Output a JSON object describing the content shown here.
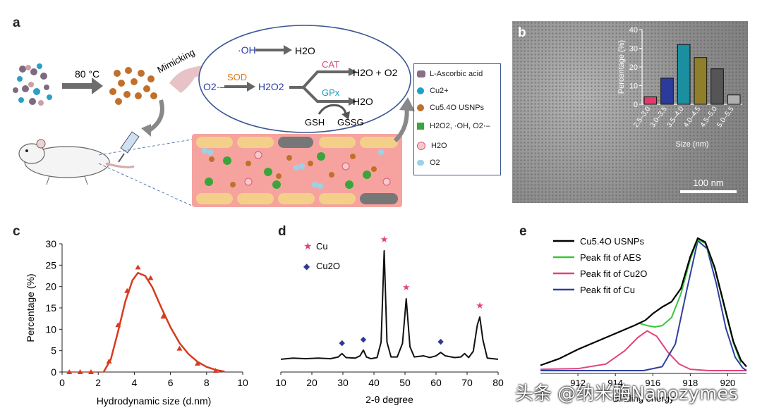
{
  "panels": {
    "a": {
      "letter": "a",
      "temp": "80 °C",
      "mimicking": "Mimicking",
      "oh": "·OH",
      "h2o_top": "H2O",
      "o2_radical": "O2·–",
      "sod": "SOD",
      "h2o2": "H2O2",
      "cat": "CAT",
      "h2o_o2": "H2O + O2",
      "gpx": "GPx",
      "h2o_mid": "H2O",
      "gsh": "GSH",
      "gssg": "GSSG",
      "legend": [
        {
          "label": "L-Ascorbic acid",
          "icon": "ascorbic-acid-icon"
        },
        {
          "label": "Cu2+",
          "icon": "copper-ion-icon"
        },
        {
          "label": "Cu5.4O USNPs",
          "icon": "nanoparticle-icon"
        },
        {
          "label": "H2O2, ·OH, O2·–",
          "icon": "ros-icon"
        },
        {
          "label": "H2O",
          "icon": "water-icon"
        },
        {
          "label": "O2",
          "icon": "oxygen-icon"
        }
      ]
    },
    "b": {
      "letter": "b",
      "scale_bar": "100 nm",
      "chart_data": {
        "type": "bar",
        "categories": [
          "2.5–3.0",
          "3.0–3.5",
          "3.5–4.0",
          "4.0–4.5",
          "4.5–5.0",
          "5.0–5.5"
        ],
        "values": [
          4,
          14,
          32,
          25,
          19,
          5
        ],
        "colors": [
          "#e23b6a",
          "#2a3b9c",
          "#1a8fa0",
          "#8f7f2a",
          "#555555",
          "#b0b0b0"
        ],
        "ylabel": "Percentage (%)",
        "xlabel": "Size (nm)",
        "ylim": [
          0,
          40
        ],
        "yticks": [
          0,
          10,
          20,
          30,
          40
        ]
      }
    },
    "c": {
      "letter": "c",
      "chart_data": {
        "type": "line",
        "xlabel": "Hydrodynamic size (d.nm)",
        "ylabel": "Percentage (%)",
        "xlim": [
          0,
          10
        ],
        "ylim": [
          0,
          30
        ],
        "xticks": [
          0,
          2,
          4,
          6,
          8,
          10
        ],
        "yticks": [
          0,
          5,
          10,
          15,
          20,
          25,
          30
        ],
        "points": [
          [
            0.4,
            0
          ],
          [
            1.0,
            0
          ],
          [
            1.6,
            0
          ],
          [
            2.6,
            2.5
          ],
          [
            3.1,
            11
          ],
          [
            3.6,
            19
          ],
          [
            4.2,
            24.5
          ],
          [
            4.9,
            22
          ],
          [
            5.6,
            13
          ],
          [
            6.5,
            5.5
          ],
          [
            7.5,
            2
          ],
          [
            8.5,
            0.3
          ]
        ],
        "curve": [
          [
            2.3,
            0
          ],
          [
            2.7,
            3
          ],
          [
            3.1,
            9.5
          ],
          [
            3.5,
            16.5
          ],
          [
            3.9,
            21.5
          ],
          [
            4.2,
            23.2
          ],
          [
            4.6,
            22.5
          ],
          [
            5.0,
            19.8
          ],
          [
            5.5,
            15
          ],
          [
            6.0,
            10.5
          ],
          [
            6.5,
            6.8
          ],
          [
            7.0,
            4.2
          ],
          [
            7.5,
            2.4
          ],
          [
            8.0,
            1.2
          ],
          [
            8.5,
            0.5
          ],
          [
            9.0,
            0.1
          ]
        ],
        "color": "#d93a1f"
      }
    },
    "d": {
      "letter": "d",
      "legend_cu": "Cu",
      "legend_cu2o": "Cu2O",
      "chart_data": {
        "type": "line",
        "xlabel": "2-θ degree",
        "xlim": [
          10,
          80
        ],
        "xticks": [
          10,
          20,
          30,
          40,
          50,
          60,
          70,
          80
        ],
        "ylim": [
          0,
          100
        ],
        "series": [
          {
            "name": "XRD",
            "values": [
              [
                10,
                5
              ],
              [
                14,
                6
              ],
              [
                18,
                5.5
              ],
              [
                22,
                6
              ],
              [
                26,
                5.5
              ],
              [
                28.5,
                7
              ],
              [
                29.7,
                10
              ],
              [
                31,
                6.5
              ],
              [
                34,
                6
              ],
              [
                35.5,
                8
              ],
              [
                36.6,
                13
              ],
              [
                37.6,
                7
              ],
              [
                39,
                5.5
              ],
              [
                41,
                6.5
              ],
              [
                42.3,
                20
              ],
              [
                43.3,
                100
              ],
              [
                44.2,
                20
              ],
              [
                45.5,
                7
              ],
              [
                47.5,
                7
              ],
              [
                49.2,
                19
              ],
              [
                50.4,
                58
              ],
              [
                51.6,
                16
              ],
              [
                53,
                7
              ],
              [
                56,
                8
              ],
              [
                58,
                6.5
              ],
              [
                60,
                8
              ],
              [
                61.5,
                11
              ],
              [
                63,
                8
              ],
              [
                66,
                6.5
              ],
              [
                68,
                7
              ],
              [
                69.2,
                10
              ],
              [
                70.5,
                6.5
              ],
              [
                72,
                12
              ],
              [
                73.3,
                35
              ],
              [
                74.1,
                42
              ],
              [
                75.1,
                22
              ],
              [
                76.5,
                6
              ],
              [
                80,
                5
              ]
            ]
          }
        ],
        "markers": [
          {
            "phase": "Cu",
            "x": 43.3,
            "y": 100
          },
          {
            "phase": "Cu",
            "x": 50.4,
            "y": 58
          },
          {
            "phase": "Cu",
            "x": 74.1,
            "y": 42
          },
          {
            "phase": "Cu2O",
            "x": 29.7,
            "y": 10
          },
          {
            "phase": "Cu2O",
            "x": 36.6,
            "y": 13
          },
          {
            "phase": "Cu2O",
            "x": 61.5,
            "y": 11
          }
        ],
        "colors": {
          "Cu": "#e0457a",
          "Cu2O": "#2e3a9a"
        }
      }
    },
    "e": {
      "letter": "e",
      "chart_data": {
        "type": "line",
        "xlabel": "Binding energy",
        "xlim": [
          910,
          921
        ],
        "xticks": [
          912,
          914,
          916,
          918,
          920
        ],
        "ylim": [
          0,
          100
        ],
        "series": [
          {
            "name": "Cu5.4O USNPs",
            "color": "#000000",
            "values": [
              [
                910,
                4
              ],
              [
                911,
                9
              ],
              [
                912,
                16
              ],
              [
                913,
                22
              ],
              [
                914,
                28
              ],
              [
                915,
                34
              ],
              [
                915.6,
                38
              ],
              [
                916,
                43
              ],
              [
                916.5,
                48
              ],
              [
                917,
                52
              ],
              [
                917.5,
                62
              ],
              [
                918,
                86
              ],
              [
                918.4,
                100
              ],
              [
                918.8,
                97
              ],
              [
                919.3,
                78
              ],
              [
                919.8,
                50
              ],
              [
                920.3,
                22
              ],
              [
                920.7,
                8
              ],
              [
                921,
                3
              ]
            ]
          },
          {
            "name": "Peak fit of AES",
            "color": "#3cc43c",
            "values": [
              [
                915.2,
                36
              ],
              [
                915.7,
                34
              ],
              [
                916.1,
                33
              ],
              [
                916.5,
                34
              ],
              [
                917,
                40
              ],
              [
                917.5,
                58
              ],
              [
                918,
                84
              ],
              [
                918.4,
                99
              ],
              [
                918.8,
                96
              ],
              [
                919.3,
                77
              ],
              [
                919.8,
                49
              ],
              [
                920.3,
                21
              ],
              [
                920.7,
                6
              ]
            ]
          },
          {
            "name": "Peak fit of Cu2O",
            "color": "#e0447e",
            "values": [
              [
                910,
                1
              ],
              [
                912,
                1.5
              ],
              [
                913.5,
                5
              ],
              [
                914.5,
                15
              ],
              [
                915.2,
                25
              ],
              [
                915.7,
                30
              ],
              [
                916.2,
                26
              ],
              [
                916.8,
                14
              ],
              [
                917.4,
                5
              ],
              [
                918,
                1
              ],
              [
                919,
                0
              ],
              [
                921,
                0
              ]
            ]
          },
          {
            "name": "Peak fit of Cu",
            "color": "#2e3fa0",
            "values": [
              [
                910,
                0
              ],
              [
                915.5,
                0
              ],
              [
                916.5,
                3
              ],
              [
                917.2,
                20
              ],
              [
                917.8,
                60
              ],
              [
                918.4,
                98
              ],
              [
                918.9,
                92
              ],
              [
                919.4,
                65
              ],
              [
                919.9,
                32
              ],
              [
                920.4,
                10
              ],
              [
                920.8,
                2
              ],
              [
                921,
                0
              ]
            ]
          }
        ]
      }
    }
  },
  "watermark": "头条 @纳米酶Nanozymes"
}
